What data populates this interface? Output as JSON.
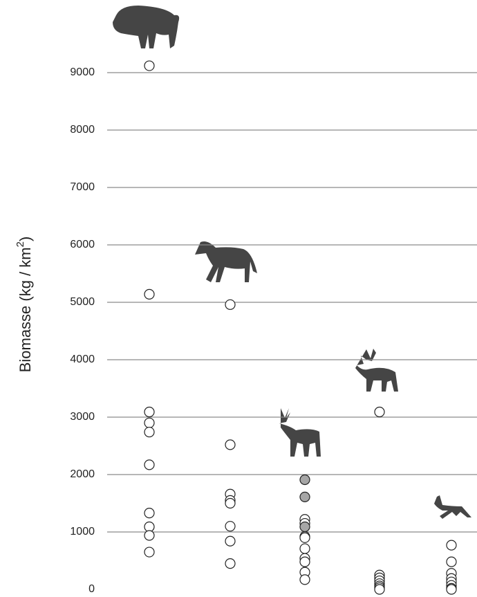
{
  "chart_data": {
    "type": "strip",
    "y_label": "Biomasse (kg / km",
    "y_label_sup": "2",
    "y_label_end": ")",
    "categories": [
      null,
      null,
      null,
      null,
      null
    ],
    "series": [
      {
        "color": "#ffffff",
        "values": [
          [
            9120,
            5140,
            3090,
            2900,
            2740,
            2170,
            1330,
            1090,
            940,
            650
          ],
          [
            4960,
            2520,
            1660,
            1550,
            1500,
            1100,
            840,
            450
          ],
          [
            1220,
            1150,
            920,
            900,
            710,
            540,
            480,
            300,
            170
          ],
          [
            3090,
            250,
            200,
            150,
            100,
            60,
            30,
            0
          ],
          [
            770,
            480,
            280,
            190,
            130,
            70,
            20,
            0
          ]
        ]
      },
      {
        "color": "#a6a6a6",
        "values": [
          [],
          [],
          [
            1910,
            1610,
            1090
          ],
          [],
          []
        ]
      }
    ],
    "ylim": [
      0,
      10200
    ],
    "yticks": [
      0,
      1000,
      2000,
      3000,
      4000,
      5000,
      6000,
      7000,
      8000,
      9000
    ],
    "grid": true
  }
}
